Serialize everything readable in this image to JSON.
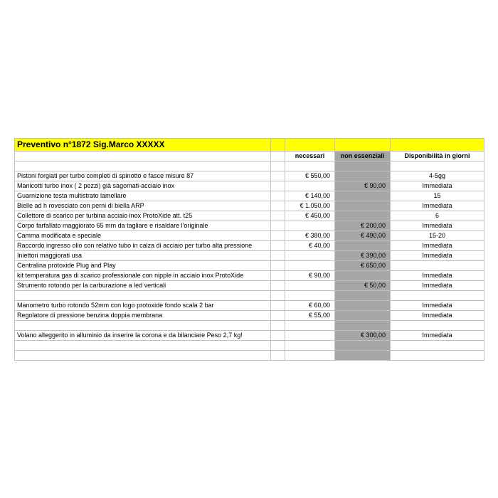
{
  "title": "Preventivo n°1872 Sig.Marco XXXXX",
  "headers": {
    "necessari": "necessari",
    "non_essenziali": "non essenziali",
    "disponibilita": "Disponibilità in giorni"
  },
  "rows": [
    {
      "desc": "Pistoni forgiati per turbo completi di spinotto e fasce     misure 87",
      "nec": "€ 550,00",
      "non": "",
      "disp": "4-5gg"
    },
    {
      "desc": "Manicotti turbo inox ( 2 pezzi) già sagomati-acciaio inox",
      "nec": "",
      "non": "€ 90,00",
      "disp": "Immediata"
    },
    {
      "desc": "Guarnizione testa multistrato lamellare",
      "nec": "€ 140,00",
      "non": "",
      "disp": "15"
    },
    {
      "desc": "Bielle ad h rovesciato con perni di biella ARP",
      "nec": "€ 1.050,00",
      "non": "",
      "disp": "Immediata"
    },
    {
      "desc": "Collettore di scarico per turbina acciaio inox ProtoXide att. t25",
      "nec": "€ 450,00",
      "non": "",
      "disp": "6"
    },
    {
      "desc": "Corpo farfallato maggiorato 65 mm da tagliare e risaldare l'originale",
      "nec": "",
      "non": "€ 200,00",
      "disp": "Immediata"
    },
    {
      "desc": "Camma modificata e speciale",
      "nec": "€ 380,00",
      "non": "€ 490,00",
      "disp": "15-20"
    },
    {
      "desc": "Raccordo ingresso olio con relativo tubo in calza di acciaio per turbo alta pressione",
      "nec": "€ 40,00",
      "non": "",
      "disp": "Immediata"
    },
    {
      "desc": "Iniettori maggiorati usa",
      "nec": "",
      "non": "€ 390,00",
      "disp": "Immediata"
    },
    {
      "desc": "Centralina protoxide Plug and Play",
      "nec": "",
      "non": "€ 650,00",
      "disp": ""
    },
    {
      "desc": "kit temperatura gas di scarico professionale con nipple in acciaio inox ProtoXide",
      "nec": "€ 90,00",
      "non": "",
      "disp": "Immediata"
    },
    {
      "desc": "Strumento rotondo per la carburazione a led verticali",
      "nec": "",
      "non": "€ 50,00",
      "disp": "Immediata"
    },
    {
      "desc": "",
      "nec": "",
      "non": "",
      "disp": "",
      "blank": true
    },
    {
      "desc": "Manometro turbo rotondo 52mm con logo protoxide fondo scala 2 bar",
      "nec": "€ 60,00",
      "non": "",
      "disp": "Immediata"
    },
    {
      "desc": "Regolatore di pressione benzina doppia membrana",
      "nec": "€ 55,00",
      "non": "",
      "disp": "Immediata"
    },
    {
      "desc": "",
      "nec": "",
      "non": "",
      "disp": "",
      "blank": true
    },
    {
      "desc": "Volano alleggerito in alluminio da inserire la corona e da bilanciare Peso 2,7 kg!",
      "nec": "",
      "non": "€ 300,00",
      "disp": "Immediata"
    }
  ],
  "colors": {
    "title_bg": "#ffff00",
    "grey_bg": "#a6a6a6",
    "grid": "#c0c0c0"
  }
}
